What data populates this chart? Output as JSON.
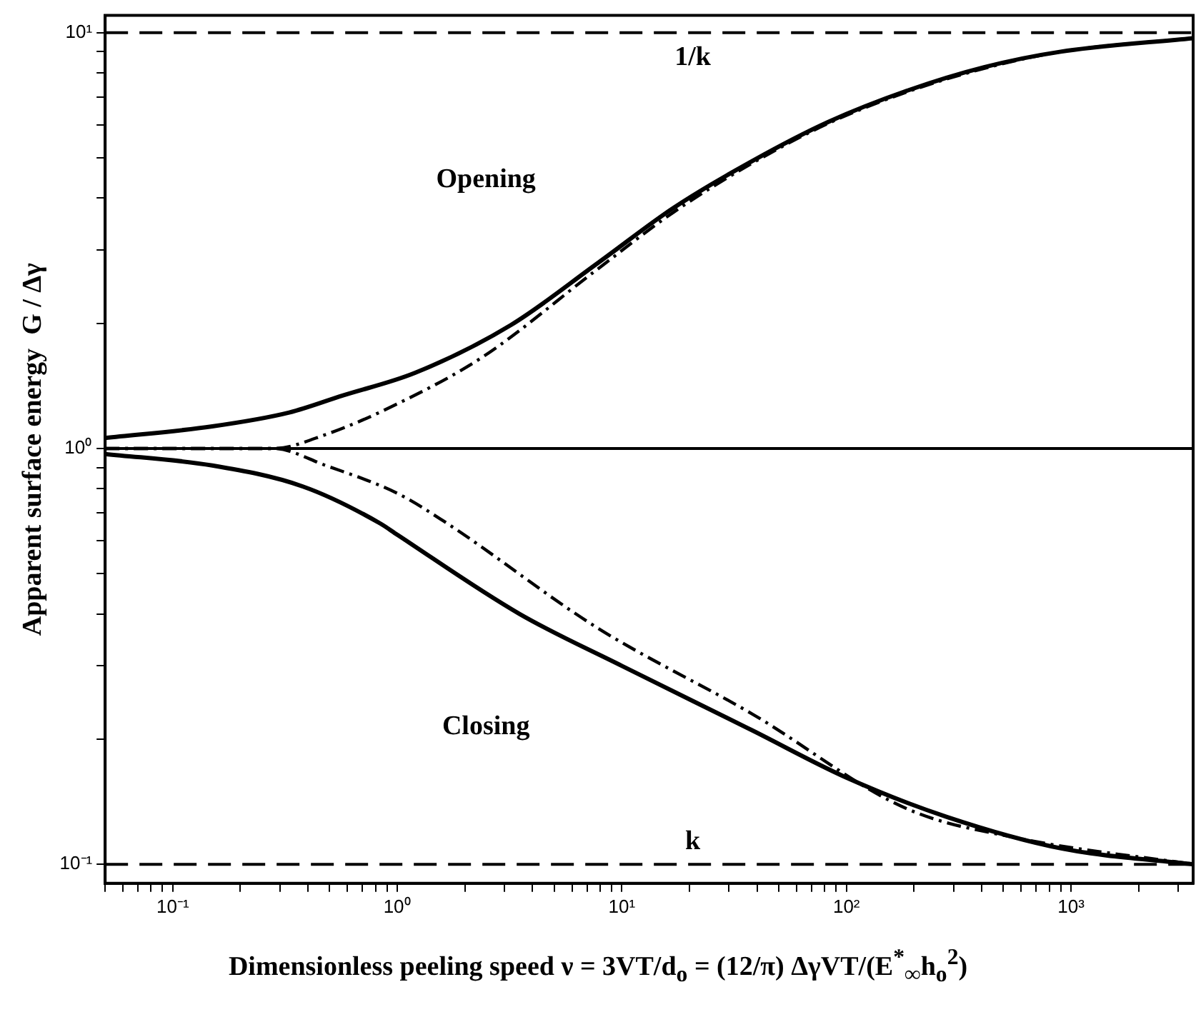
{
  "chart_data": {
    "type": "line",
    "xlabel": "Dimensionless peeling speed  ν = 3VT/d$_{o}$ = (12/π) ΔγVT/(E$^{*}$$_{∞}$h$_{o}$$^{2}$)",
    "ylabel": "Apparent surface energy  G / Δγ",
    "log": "xy",
    "xlim": [
      0.05,
      3500
    ],
    "ylim": [
      0.09,
      11
    ],
    "xticks": [
      {
        "value": 0.05,
        "label": null
      },
      {
        "value": 0.06,
        "label": null
      },
      {
        "value": 0.07,
        "label": null
      },
      {
        "value": 0.08,
        "label": null
      },
      {
        "value": 0.09,
        "label": null
      },
      {
        "value": 0.1,
        "label": "10⁻¹"
      },
      {
        "value": 0.2,
        "label": null
      },
      {
        "value": 0.3,
        "label": null
      },
      {
        "value": 0.4,
        "label": null
      },
      {
        "value": 0.5,
        "label": null
      },
      {
        "value": 0.6,
        "label": null
      },
      {
        "value": 0.7,
        "label": null
      },
      {
        "value": 0.8,
        "label": null
      },
      {
        "value": 0.9,
        "label": null
      },
      {
        "value": 1,
        "label": "10⁰"
      },
      {
        "value": 2,
        "label": null
      },
      {
        "value": 3,
        "label": null
      },
      {
        "value": 4,
        "label": null
      },
      {
        "value": 5,
        "label": null
      },
      {
        "value": 6,
        "label": null
      },
      {
        "value": 7,
        "label": null
      },
      {
        "value": 8,
        "label": null
      },
      {
        "value": 9,
        "label": null
      },
      {
        "value": 10,
        "label": "10¹"
      },
      {
        "value": 20,
        "label": null
      },
      {
        "value": 30,
        "label": null
      },
      {
        "value": 40,
        "label": null
      },
      {
        "value": 50,
        "label": null
      },
      {
        "value": 60,
        "label": null
      },
      {
        "value": 70,
        "label": null
      },
      {
        "value": 80,
        "label": null
      },
      {
        "value": 90,
        "label": null
      },
      {
        "value": 100,
        "label": "10²"
      },
      {
        "value": 200,
        "label": null
      },
      {
        "value": 300,
        "label": null
      },
      {
        "value": 400,
        "label": null
      },
      {
        "value": 500,
        "label": null
      },
      {
        "value": 600,
        "label": null
      },
      {
        "value": 700,
        "label": null
      },
      {
        "value": 800,
        "label": null
      },
      {
        "value": 900,
        "label": null
      },
      {
        "value": 1000,
        "label": "10³"
      },
      {
        "value": 2000,
        "label": null
      },
      {
        "value": 3000,
        "label": null
      }
    ],
    "yticks": [
      {
        "value": 0.1,
        "label": "10⁻¹"
      },
      {
        "value": 0.2,
        "label": null
      },
      {
        "value": 0.3,
        "label": null
      },
      {
        "value": 0.4,
        "label": null
      },
      {
        "value": 0.5,
        "label": null
      },
      {
        "value": 0.6,
        "label": null
      },
      {
        "value": 0.7,
        "label": null
      },
      {
        "value": 0.8,
        "label": null
      },
      {
        "value": 0.9,
        "label": null
      },
      {
        "value": 1,
        "label": "10⁰"
      },
      {
        "value": 2,
        "label": null
      },
      {
        "value": 3,
        "label": null
      },
      {
        "value": 4,
        "label": null
      },
      {
        "value": 5,
        "label": null
      },
      {
        "value": 6,
        "label": null
      },
      {
        "value": 7,
        "label": null
      },
      {
        "value": 8,
        "label": null
      },
      {
        "value": 9,
        "label": null
      },
      {
        "value": 10,
        "label": "10¹"
      }
    ],
    "grid": false,
    "legend": false,
    "marker": "none",
    "series": [
      {
        "color": "#000000",
        "line_style": "solid",
        "x": [
          0.05,
          0.15,
          0.33,
          0.57,
          1.2,
          3.2,
          7.8,
          17,
          38,
          83,
          186,
          410,
          900,
          3500
        ],
        "values": [
          1.06,
          1.13,
          1.22,
          1.34,
          1.52,
          1.98,
          2.79,
          3.79,
          4.91,
          6.1,
          7.25,
          8.26,
          9.0,
          9.7
        ]
      },
      {
        "color": "#000000",
        "line_style": "dashed",
        "x": [
          0.05,
          0.28,
          0.48,
          1.0,
          2.4,
          7.8,
          17,
          38,
          83,
          186,
          410,
          900,
          3500
        ],
        "values": [
          1.0,
          1.0,
          1.08,
          1.28,
          1.66,
          2.7,
          3.7,
          4.85,
          6.05,
          7.2,
          8.2,
          9.0,
          9.7
        ]
      },
      {
        "color": "#000000",
        "line_style": "solid",
        "x": [
          0.05,
          0.15,
          0.38,
          0.84,
          1.0,
          3.5,
          10,
          38,
          99,
          280,
          920,
          3500
        ],
        "values": [
          0.97,
          0.91,
          0.81,
          0.66,
          0.62,
          0.4,
          0.3,
          0.21,
          0.162,
          0.13,
          0.109,
          0.1
        ]
      },
      {
        "color": "#000000",
        "line_style": "dashed",
        "x": [
          0.05,
          0.28,
          0.48,
          1.0,
          1.6,
          7.8,
          38,
          186,
          610,
          3500
        ],
        "values": [
          1.0,
          1.0,
          0.91,
          0.78,
          0.67,
          0.37,
          0.23,
          0.136,
          0.115,
          0.1
        ]
      }
    ],
    "ref_lines": [
      {
        "axis": "y",
        "value": 10,
        "label": "1/k",
        "line_style": "dashed"
      },
      {
        "axis": "y",
        "value": 1,
        "line_style": "solid"
      },
      {
        "axis": "y",
        "value": 0.1,
        "label": "k",
        "line_style": "dashed"
      }
    ],
    "annotations": [
      "Opening",
      "Closing"
    ]
  }
}
